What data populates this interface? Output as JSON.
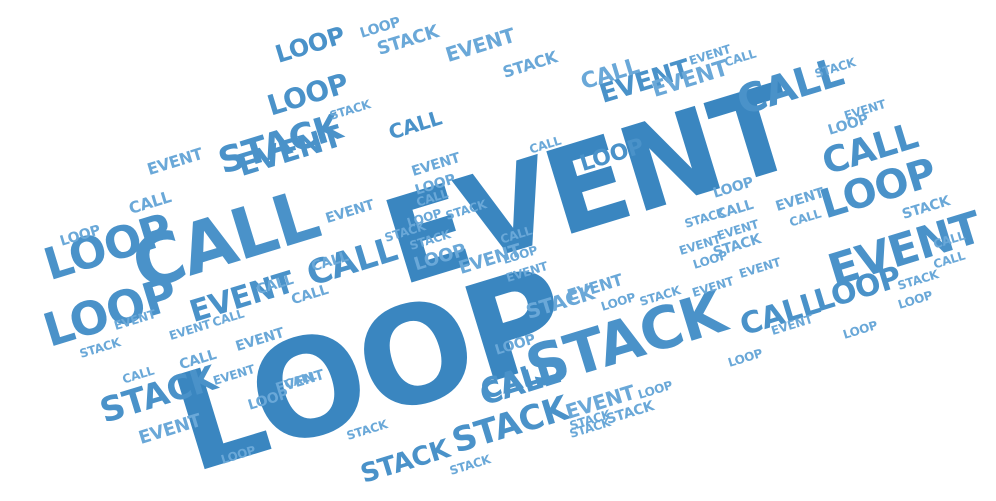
{
  "colors": {
    "background": "#ffffff",
    "dark": "#3a86c0",
    "mid": "#4a92c9",
    "light": "#6aa8d8"
  },
  "words": [
    {
      "text": "EVENT",
      "tone": "dark"
    },
    {
      "text": "LOOP",
      "tone": "dark"
    },
    {
      "text": "STACK",
      "tone": "mid"
    },
    {
      "text": "CALL",
      "tone": "mid"
    },
    {
      "text": "EVENT",
      "tone": "mid"
    },
    {
      "text": "LOOP",
      "tone": "mid"
    },
    {
      "text": "LOOP",
      "tone": "mid"
    },
    {
      "text": "CALL",
      "tone": "mid"
    },
    {
      "text": "LOOP",
      "tone": "mid"
    },
    {
      "text": "CALL",
      "tone": "mid"
    },
    {
      "text": "STACK",
      "tone": "mid"
    },
    {
      "text": "STACK",
      "tone": "mid"
    },
    {
      "text": "STACK",
      "tone": "mid"
    },
    {
      "text": "CALL",
      "tone": "mid"
    },
    {
      "text": "EVENT",
      "tone": "mid"
    },
    {
      "text": "CALL",
      "tone": "mid"
    },
    {
      "text": "CALL",
      "tone": "mid"
    },
    {
      "text": "LOOP",
      "tone": "mid"
    },
    {
      "text": "CALL",
      "tone": "mid"
    },
    {
      "text": "EVENT",
      "tone": "mid"
    },
    {
      "text": "EVENT",
      "tone": "mid"
    },
    {
      "text": "STACK",
      "tone": "mid"
    },
    {
      "text": "LOOP",
      "tone": "mid"
    },
    {
      "text": "LOOP",
      "tone": "mid"
    },
    {
      "text": "LOOP",
      "tone": "mid"
    },
    {
      "text": "CALL",
      "tone": "mid"
    },
    {
      "text": "STACK",
      "tone": "light"
    },
    {
      "text": "EVENT",
      "tone": "light"
    },
    {
      "text": "CALL",
      "tone": "light"
    },
    {
      "text": "LOOP",
      "tone": "light"
    },
    {
      "text": "LOOP",
      "tone": "light"
    },
    {
      "text": "STACK",
      "tone": "light"
    },
    {
      "text": "STACK",
      "tone": "light"
    },
    {
      "text": "EVENT",
      "tone": "light"
    },
    {
      "text": "LOOP",
      "tone": "light"
    },
    {
      "text": "EVENT",
      "tone": "light"
    },
    {
      "text": "STACK",
      "tone": "light"
    },
    {
      "text": "EVENT",
      "tone": "light"
    },
    {
      "text": "EVENT",
      "tone": "light"
    },
    {
      "text": "EVENT",
      "tone": "light"
    },
    {
      "text": "EVENT",
      "tone": "light"
    },
    {
      "text": "CALL",
      "tone": "light"
    },
    {
      "text": "LOOP",
      "tone": "light"
    },
    {
      "text": "CALL",
      "tone": "light"
    },
    {
      "text": "CALL",
      "tone": "light"
    },
    {
      "text": "CALL",
      "tone": "light"
    },
    {
      "text": "CALL",
      "tone": "light"
    },
    {
      "text": "EVENT",
      "tone": "light"
    },
    {
      "text": "STACK",
      "tone": "light"
    },
    {
      "text": "STACK",
      "tone": "light"
    },
    {
      "text": "LOOP",
      "tone": "light"
    },
    {
      "text": "LOOP",
      "tone": "light"
    },
    {
      "text": "EVENT",
      "tone": "light"
    },
    {
      "text": "LOOP",
      "tone": "light"
    },
    {
      "text": "CALL",
      "tone": "light"
    },
    {
      "text": "LOOP",
      "tone": "light"
    },
    {
      "text": "STACK",
      "tone": "light"
    },
    {
      "text": "LOOP",
      "tone": "light"
    },
    {
      "text": "STACK",
      "tone": "light"
    },
    {
      "text": "EVENT",
      "tone": "light"
    },
    {
      "text": "CALL",
      "tone": "light"
    },
    {
      "text": "CALL",
      "tone": "light"
    },
    {
      "text": "LOOP",
      "tone": "light"
    },
    {
      "text": "STACK",
      "tone": "light"
    },
    {
      "text": "EVENT",
      "tone": "light"
    },
    {
      "text": "LOOP",
      "tone": "light"
    },
    {
      "text": "STACK",
      "tone": "light"
    },
    {
      "text": "EVENT",
      "tone": "light"
    },
    {
      "text": "STACK",
      "tone": "light"
    },
    {
      "text": "EVENT",
      "tone": "light"
    },
    {
      "text": "LOOP",
      "tone": "light"
    },
    {
      "text": "LOOP",
      "tone": "light"
    },
    {
      "text": "CALL",
      "tone": "light"
    },
    {
      "text": "EVENT",
      "tone": "light"
    },
    {
      "text": "EVENT",
      "tone": "light"
    },
    {
      "text": "STACK",
      "tone": "light"
    },
    {
      "text": "EVENT",
      "tone": "light"
    },
    {
      "text": "CALL",
      "tone": "light"
    },
    {
      "text": "STACK",
      "tone": "light"
    },
    {
      "text": "EVENT",
      "tone": "light"
    },
    {
      "text": "EVENT",
      "tone": "light"
    },
    {
      "text": "CALL",
      "tone": "light"
    },
    {
      "text": "STACK",
      "tone": "light"
    },
    {
      "text": "STACK",
      "tone": "light"
    },
    {
      "text": "LOOP",
      "tone": "light"
    },
    {
      "text": "EVENT",
      "tone": "light"
    },
    {
      "text": "LOOP",
      "tone": "light"
    },
    {
      "text": "CALL",
      "tone": "light"
    },
    {
      "text": "CALL",
      "tone": "light"
    },
    {
      "text": "CALL",
      "tone": "light"
    },
    {
      "text": "STACK",
      "tone": "light"
    },
    {
      "text": "EVENT",
      "tone": "light"
    },
    {
      "text": "EVENT",
      "tone": "light"
    },
    {
      "text": "EVENT",
      "tone": "light"
    },
    {
      "text": "LOOP",
      "tone": "light"
    },
    {
      "text": "CALL",
      "tone": "light"
    },
    {
      "text": "STACK",
      "tone": "light"
    },
    {
      "text": "STACK",
      "tone": "light"
    },
    {
      "text": "LOOP",
      "tone": "light"
    },
    {
      "text": "STACK",
      "tone": "light"
    },
    {
      "text": "CALL",
      "tone": "light"
    },
    {
      "text": "EVENT",
      "tone": "light"
    }
  ]
}
